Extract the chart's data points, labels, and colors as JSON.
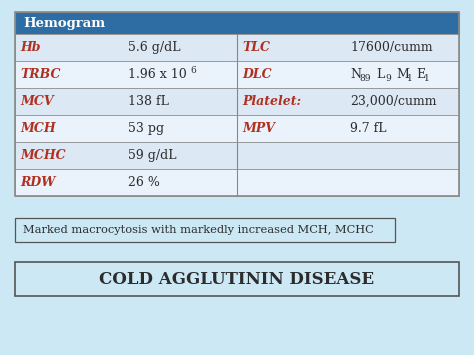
{
  "bg_color": "#cce8f4",
  "title": "COLD AGGLUTININ DISEASE",
  "interpretation": "Marked macrocytosis with markedly increased MCH, MCHC",
  "header_text": "Hemogram",
  "header_bg": "#2e6da4",
  "header_fg": "#ffffff",
  "row_colors": [
    "#dde8f5",
    "#eaf3fb",
    "#dde8f5",
    "#eaf3fb",
    "#dde8f5",
    "#eaf3fb"
  ],
  "label_color": "#b03020",
  "value_color": "#2c2c2c",
  "border_color": "#888888",
  "rows": [
    [
      "Hb",
      "5.6 g/dL",
      "TLC",
      "17600/cumm"
    ],
    [
      "TRBC",
      "1.96 x 10^6",
      "DLC",
      "N_89 L_9 M_1 E_1"
    ],
    [
      "MCV",
      "138 fL",
      "Platelet:",
      "23,000/cumm"
    ],
    [
      "MCH",
      "53 pg",
      "MPV",
      "9.7 fL"
    ],
    [
      "MCHC",
      "59 g/dL",
      "",
      ""
    ],
    [
      "RDW",
      "26 %",
      "",
      ""
    ]
  ]
}
